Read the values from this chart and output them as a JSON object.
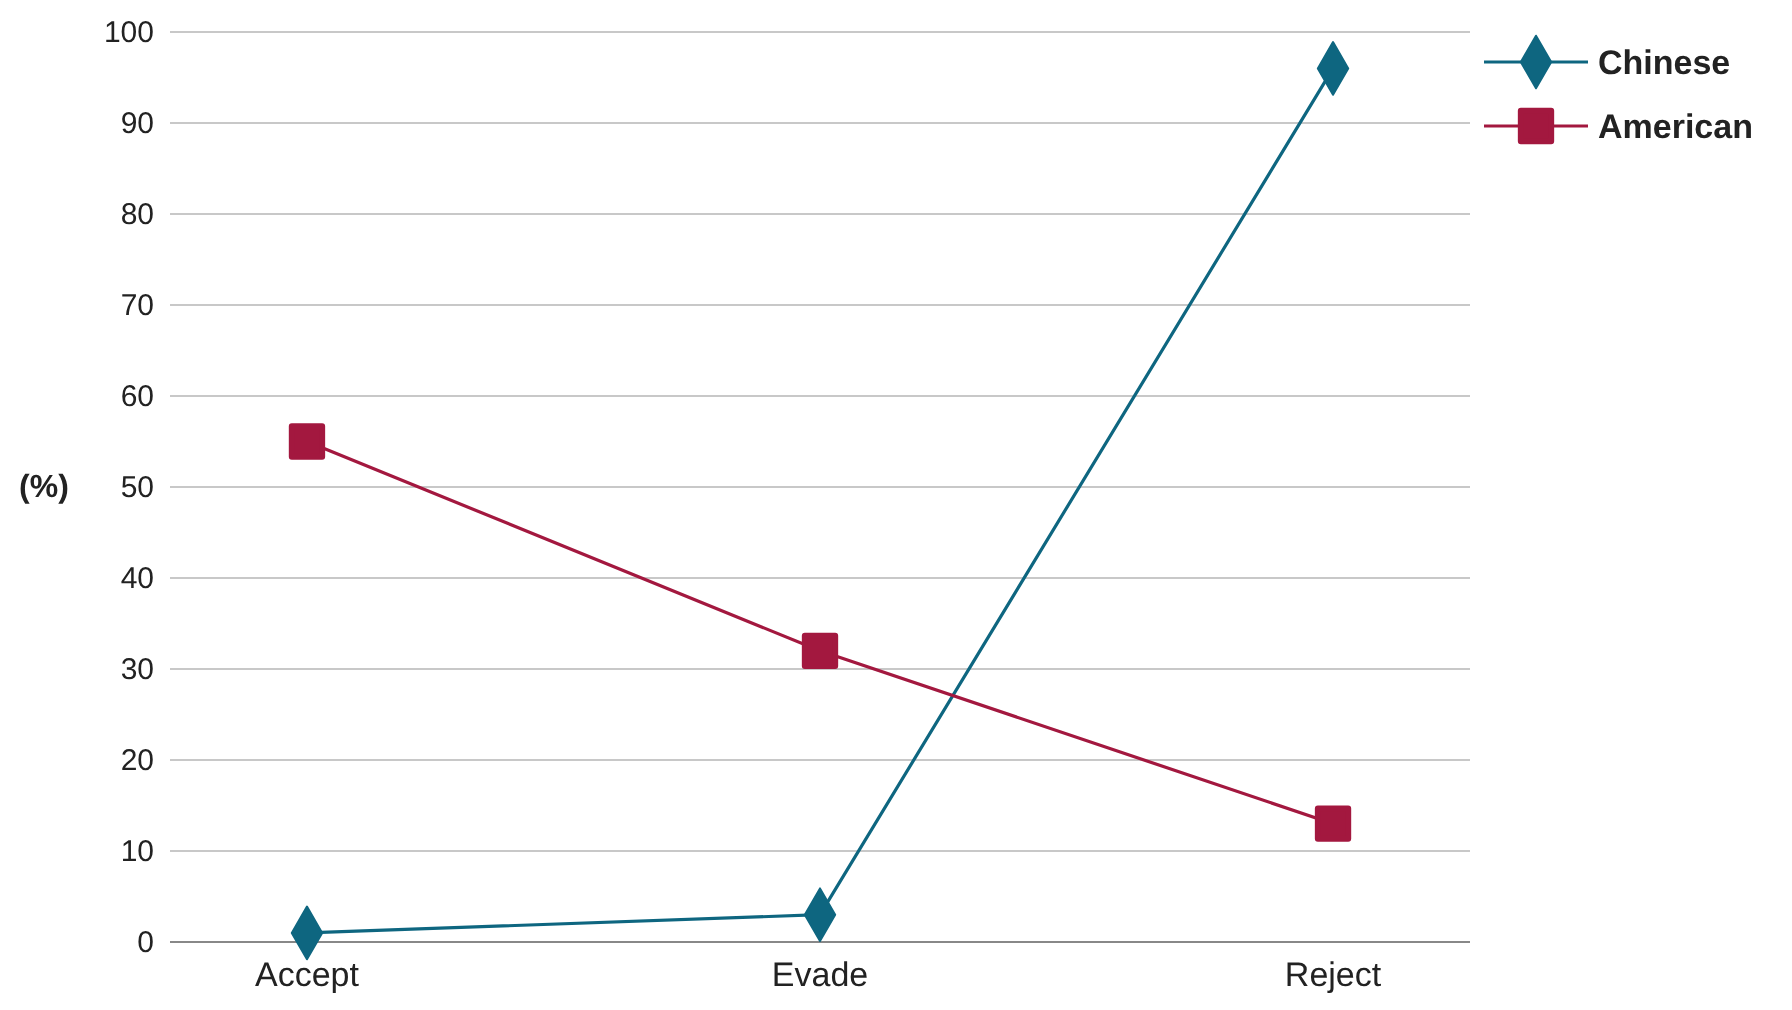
{
  "chart_data": {
    "type": "line",
    "ylabel": "(%)",
    "categories": [
      "Accept",
      "Evade",
      "Reject"
    ],
    "series": [
      {
        "name": "Chinese",
        "color": "#0e6680",
        "marker": "diamond",
        "values": [
          1,
          3,
          96
        ]
      },
      {
        "name": "American",
        "color": "#a3183f",
        "marker": "square",
        "values": [
          55,
          32,
          13
        ]
      }
    ],
    "ylim": [
      0,
      100
    ],
    "yticks": [
      0,
      10,
      20,
      30,
      40,
      50,
      60,
      70,
      80,
      90,
      100
    ],
    "grid": "y",
    "legend": "top right",
    "line_style": "solid"
  }
}
